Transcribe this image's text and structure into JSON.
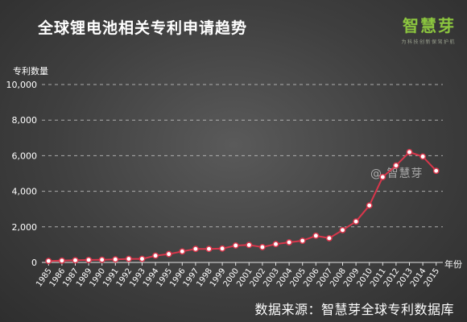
{
  "header": {
    "title": "全球锂电池相关专利申请趋势",
    "brand_name": "智慧芽",
    "brand_tagline": "为科技创新保驾护航"
  },
  "footer": {
    "source": "数据来源：智慧芽全球专利数据库"
  },
  "watermark": "@ 智慧芽",
  "colors": {
    "line": "#d9364b",
    "marker_fill": "#ffffff",
    "gridline": "#c8c8c8",
    "brand": "#8cc63f"
  },
  "chart_data": {
    "type": "line",
    "ylabel": "专利数量",
    "xlabel": "年份",
    "ylim": [
      0,
      10000
    ],
    "y_ticks": [
      0,
      2000,
      4000,
      6000,
      8000,
      10000
    ],
    "y_tick_labels": [
      "0",
      "2,000",
      "4,000",
      "6,000",
      "8,000",
      "10,000"
    ],
    "grid": true,
    "categories": [
      "1985",
      "1986",
      "1987",
      "1989",
      "1990",
      "1991",
      "1992",
      "1993",
      "1994",
      "1995",
      "1996",
      "1997",
      "1998",
      "1999",
      "2000",
      "2001",
      "2002",
      "2003",
      "2004",
      "2005",
      "2006",
      "2007",
      "2008",
      "2009",
      "2010",
      "2011",
      "2012",
      "2013",
      "2014",
      "2015"
    ],
    "values": [
      80,
      100,
      120,
      140,
      150,
      170,
      200,
      200,
      380,
      470,
      620,
      760,
      760,
      780,
      950,
      980,
      860,
      1030,
      1130,
      1220,
      1500,
      1360,
      1820,
      2300,
      3200,
      4800,
      5450,
      6200,
      5950,
      5150
    ]
  }
}
